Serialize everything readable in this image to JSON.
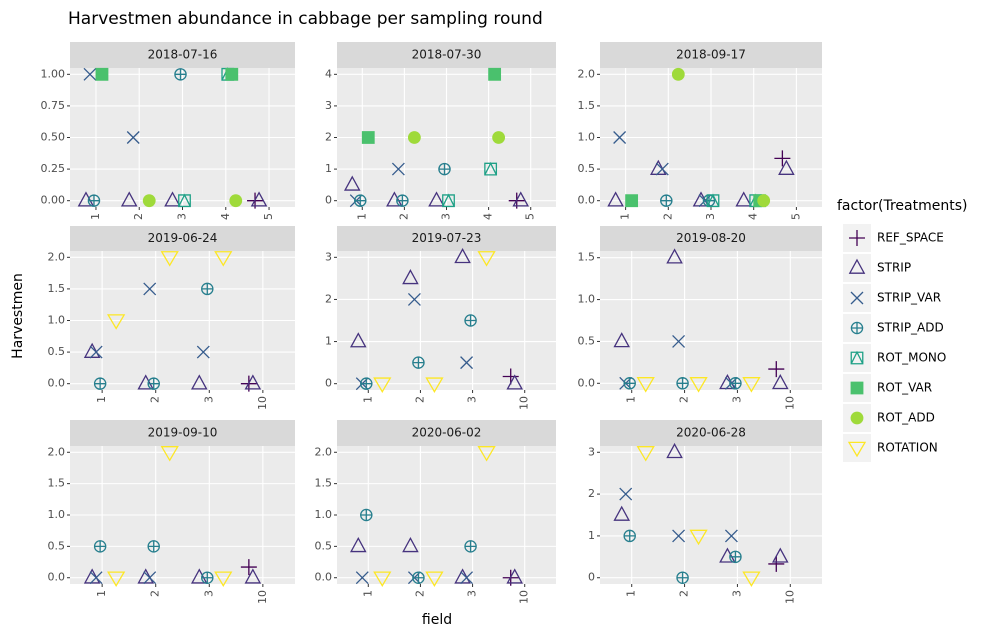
{
  "page": {
    "title": "Harvestmen abundance in cabbage per sampling round",
    "xlabel": "field",
    "ylabel": "Harvestmen"
  },
  "legend": {
    "title": "factor(Treatments)",
    "items": [
      {
        "name": "REF_SPACE",
        "color": "#440154",
        "shape": "plus"
      },
      {
        "name": "STRIP",
        "color": "#46337E",
        "shape": "triangle"
      },
      {
        "name": "STRIP_VAR",
        "color": "#365C8D",
        "shape": "cross"
      },
      {
        "name": "STRIP_ADD",
        "color": "#277F8E",
        "shape": "circle-plus"
      },
      {
        "name": "ROT_MONO",
        "color": "#1FA187",
        "shape": "square-triangle"
      },
      {
        "name": "ROT_VAR",
        "color": "#4AC16D",
        "shape": "square"
      },
      {
        "name": "ROT_ADD",
        "color": "#9FDA3A",
        "shape": "circle"
      },
      {
        "name": "ROTATION",
        "color": "#FDE725",
        "shape": "triangle-down"
      }
    ]
  },
  "chart_data": [
    {
      "type": "scatter",
      "title": "2018-07-16",
      "categories": [
        "1",
        "2",
        "3",
        "4",
        "5"
      ],
      "ylim": [
        -0.05,
        1.05
      ],
      "yticks": [
        {
          "value": 0,
          "label": "0.00"
        },
        {
          "value": 0.25,
          "label": "0.25"
        },
        {
          "value": 0.5,
          "label": "0.50"
        },
        {
          "value": 0.75,
          "label": "0.75"
        },
        {
          "value": 1,
          "label": "1.00"
        }
      ],
      "series": [
        {
          "name": "REF_SPACE",
          "values": [
            null,
            null,
            null,
            null,
            0
          ]
        },
        {
          "name": "STRIP",
          "values": [
            0,
            0,
            0,
            null,
            0
          ]
        },
        {
          "name": "STRIP_VAR",
          "values": [
            1,
            0.5,
            null,
            null,
            null
          ]
        },
        {
          "name": "STRIP_ADD",
          "values": [
            0,
            null,
            1,
            null,
            null
          ]
        },
        {
          "name": "ROT_MONO",
          "values": [
            null,
            null,
            0,
            1,
            null
          ]
        },
        {
          "name": "ROT_VAR",
          "values": [
            1,
            null,
            null,
            1,
            null
          ]
        },
        {
          "name": "ROT_ADD",
          "values": [
            null,
            0,
            null,
            0,
            null
          ]
        }
      ]
    },
    {
      "type": "scatter",
      "title": "2018-07-30",
      "categories": [
        "1",
        "2",
        "3",
        "4",
        "5"
      ],
      "ylim": [
        -0.2,
        4.2
      ],
      "yticks": [
        0,
        1,
        2,
        3,
        4
      ],
      "series": [
        {
          "name": "REF_SPACE",
          "values": [
            null,
            null,
            null,
            null,
            0
          ]
        },
        {
          "name": "STRIP",
          "values": [
            0.5,
            0,
            0,
            null,
            0
          ]
        },
        {
          "name": "STRIP_VAR",
          "values": [
            0,
            1,
            null,
            null,
            null
          ]
        },
        {
          "name": "STRIP_ADD",
          "values": [
            0,
            0,
            1,
            null,
            null
          ]
        },
        {
          "name": "ROT_MONO",
          "values": [
            null,
            null,
            0,
            1,
            null
          ]
        },
        {
          "name": "ROT_VAR",
          "values": [
            2,
            null,
            null,
            4,
            null
          ]
        },
        {
          "name": "ROT_ADD",
          "values": [
            null,
            2,
            null,
            2,
            null
          ]
        }
      ]
    },
    {
      "type": "scatter",
      "title": "2018-09-17",
      "categories": [
        "1",
        "2",
        "3",
        "4",
        "5"
      ],
      "ylim": [
        -0.1,
        2.1
      ],
      "yticks": [
        {
          "value": 0,
          "label": "0.0"
        },
        {
          "value": 0.5,
          "label": "0.5"
        },
        {
          "value": 1,
          "label": "1.0"
        },
        {
          "value": 1.5,
          "label": "1.5"
        },
        {
          "value": 2,
          "label": "2.0"
        }
      ],
      "series": [
        {
          "name": "REF_SPACE",
          "values": [
            null,
            null,
            null,
            null,
            0.67
          ]
        },
        {
          "name": "STRIP",
          "values": [
            0,
            0.5,
            0,
            0,
            0.5
          ]
        },
        {
          "name": "STRIP_VAR",
          "values": [
            1,
            0.5,
            0,
            null,
            null
          ]
        },
        {
          "name": "STRIP_ADD",
          "values": [
            null,
            0,
            0,
            null,
            null
          ]
        },
        {
          "name": "ROT_MONO",
          "values": [
            null,
            null,
            0,
            0,
            null
          ]
        },
        {
          "name": "ROT_VAR",
          "values": [
            0,
            null,
            null,
            0,
            null
          ]
        },
        {
          "name": "ROT_ADD",
          "values": [
            null,
            2,
            null,
            0,
            null
          ]
        }
      ]
    },
    {
      "type": "scatter",
      "title": "2019-06-24",
      "categories": [
        "1",
        "2",
        "3",
        "10"
      ],
      "ylim": [
        -0.1,
        2.1
      ],
      "yticks": [
        {
          "value": 0,
          "label": "0.0"
        },
        {
          "value": 0.5,
          "label": "0.5"
        },
        {
          "value": 1,
          "label": "1.0"
        },
        {
          "value": 1.5,
          "label": "1.5"
        },
        {
          "value": 2,
          "label": "2.0"
        }
      ],
      "series": [
        {
          "name": "REF_SPACE",
          "values": [
            null,
            null,
            null,
            0
          ]
        },
        {
          "name": "STRIP",
          "values": [
            0.5,
            0,
            0,
            0
          ]
        },
        {
          "name": "STRIP_VAR",
          "values": [
            0.5,
            1.5,
            0.5,
            null
          ]
        },
        {
          "name": "STRIP_ADD",
          "values": [
            0,
            0,
            1.5,
            null
          ]
        },
        {
          "name": "ROTATION",
          "values": [
            1,
            2,
            2,
            null
          ]
        }
      ]
    },
    {
      "type": "scatter",
      "title": "2019-07-23",
      "categories": [
        "1",
        "2",
        "3",
        "10"
      ],
      "ylim": [
        -0.15,
        3.15
      ],
      "yticks": [
        0,
        1,
        2,
        3
      ],
      "series": [
        {
          "name": "REF_SPACE",
          "values": [
            null,
            null,
            null,
            0.17
          ]
        },
        {
          "name": "STRIP",
          "values": [
            1,
            2.5,
            3,
            0
          ]
        },
        {
          "name": "STRIP_VAR",
          "values": [
            0,
            2,
            0.5,
            null
          ]
        },
        {
          "name": "STRIP_ADD",
          "values": [
            0,
            0.5,
            1.5,
            null
          ]
        },
        {
          "name": "ROTATION",
          "values": [
            0,
            0,
            3,
            null
          ]
        }
      ]
    },
    {
      "type": "scatter",
      "title": "2019-08-20",
      "categories": [
        "1",
        "2",
        "3",
        "10"
      ],
      "ylim": [
        -0.08,
        1.58
      ],
      "yticks": [
        {
          "value": 0,
          "label": "0.0"
        },
        {
          "value": 0.5,
          "label": "0.5"
        },
        {
          "value": 1,
          "label": "1.0"
        },
        {
          "value": 1.5,
          "label": "1.5"
        }
      ],
      "series": [
        {
          "name": "REF_SPACE",
          "values": [
            null,
            null,
            null,
            0.17
          ]
        },
        {
          "name": "STRIP",
          "values": [
            0.5,
            1.5,
            0,
            0
          ]
        },
        {
          "name": "STRIP_VAR",
          "values": [
            0,
            0.5,
            0,
            null
          ]
        },
        {
          "name": "STRIP_ADD",
          "values": [
            0,
            0,
            0,
            null
          ]
        },
        {
          "name": "ROTATION",
          "values": [
            0,
            0,
            0,
            null
          ]
        }
      ]
    },
    {
      "type": "scatter",
      "title": "2019-09-10",
      "categories": [
        "1",
        "2",
        "3",
        "10"
      ],
      "ylim": [
        -0.1,
        2.1
      ],
      "yticks": [
        {
          "value": 0,
          "label": "0.0"
        },
        {
          "value": 0.5,
          "label": "0.5"
        },
        {
          "value": 1,
          "label": "1.0"
        },
        {
          "value": 1.5,
          "label": "1.5"
        },
        {
          "value": 2,
          "label": "2.0"
        }
      ],
      "series": [
        {
          "name": "REF_SPACE",
          "values": [
            null,
            null,
            null,
            0.17
          ]
        },
        {
          "name": "STRIP",
          "values": [
            0,
            0,
            0,
            0
          ]
        },
        {
          "name": "STRIP_VAR",
          "values": [
            0,
            0,
            null,
            null
          ]
        },
        {
          "name": "STRIP_ADD",
          "values": [
            0.5,
            0.5,
            0,
            null
          ]
        },
        {
          "name": "ROTATION",
          "values": [
            0,
            2,
            0,
            null
          ]
        }
      ]
    },
    {
      "type": "scatter",
      "title": "2020-06-02",
      "categories": [
        "1",
        "2",
        "3",
        "10"
      ],
      "ylim": [
        -0.1,
        2.1
      ],
      "yticks": [
        {
          "value": 0,
          "label": "0.0"
        },
        {
          "value": 0.5,
          "label": "0.5"
        },
        {
          "value": 1,
          "label": "1.0"
        },
        {
          "value": 1.5,
          "label": "1.5"
        },
        {
          "value": 2,
          "label": "2.0"
        }
      ],
      "series": [
        {
          "name": "REF_SPACE",
          "values": [
            null,
            null,
            null,
            0
          ]
        },
        {
          "name": "STRIP",
          "values": [
            0.5,
            0.5,
            0,
            0
          ]
        },
        {
          "name": "STRIP_VAR",
          "values": [
            0,
            0,
            0,
            null
          ]
        },
        {
          "name": "STRIP_ADD",
          "values": [
            1,
            0,
            0.5,
            null
          ]
        },
        {
          "name": "ROTATION",
          "values": [
            0,
            0,
            2,
            null
          ]
        }
      ]
    },
    {
      "type": "scatter",
      "title": "2020-06-28",
      "categories": [
        "1",
        "2",
        "3",
        "10"
      ],
      "ylim": [
        -0.15,
        3.15
      ],
      "yticks": [
        0,
        1,
        2,
        3
      ],
      "series": [
        {
          "name": "REF_SPACE",
          "values": [
            null,
            null,
            null,
            0.33
          ]
        },
        {
          "name": "STRIP",
          "values": [
            1.5,
            3,
            0.5,
            0.5
          ]
        },
        {
          "name": "STRIP_VAR",
          "values": [
            2,
            1,
            1,
            null
          ]
        },
        {
          "name": "STRIP_ADD",
          "values": [
            1,
            0,
            0.5,
            null
          ]
        },
        {
          "name": "ROTATION",
          "values": [
            3,
            1,
            0,
            null
          ]
        }
      ]
    }
  ]
}
